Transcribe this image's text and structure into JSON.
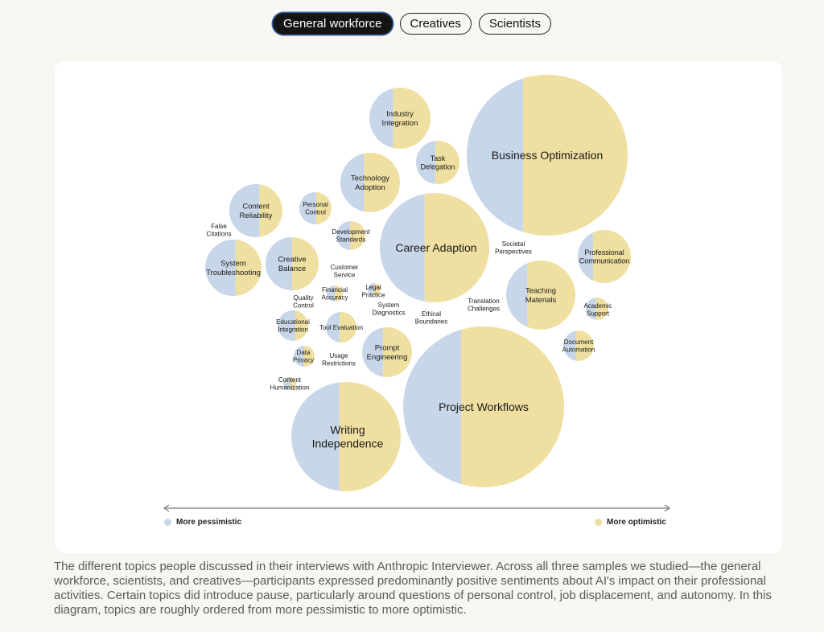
{
  "tabs": [
    {
      "label": "General workforce",
      "active": true
    },
    {
      "label": "Creatives",
      "active": false
    },
    {
      "label": "Scientists",
      "active": false
    }
  ],
  "colors": {
    "pessimistic": "#c7d6e8",
    "optimistic": "#efdfa0"
  },
  "topics": [
    {
      "label": "Industry\nIntegration",
      "pessimistic_share": 0.39
    },
    {
      "label": "Business Optimization",
      "pessimistic_share": 0.35
    },
    {
      "label": "Task\nDelegation",
      "pessimistic_share": 0.45
    },
    {
      "label": "Technology\nAdoption",
      "pessimistic_share": 0.4
    },
    {
      "label": "Content\nReliability",
      "pessimistic_share": 0.57
    },
    {
      "label": "Personal\nControl",
      "pessimistic_share": 0.52
    },
    {
      "label": "Development\nStandards",
      "pessimistic_share": 0.47
    },
    {
      "label": "Career Adaption",
      "pessimistic_share": 0.41
    },
    {
      "label": "Professional\nCommunication",
      "pessimistic_share": 0.29
    },
    {
      "label": "System\nTroubleshooting",
      "pessimistic_share": 0.54
    },
    {
      "label": "Creative\nBalance",
      "pessimistic_share": 0.5
    },
    {
      "label": "Teaching\nMaterials",
      "pessimistic_share": 0.31
    },
    {
      "label": "Academic\nSupport",
      "pessimistic_share": 0.45
    },
    {
      "label": "Tool Evaluation",
      "pessimistic_share": 0.45
    },
    {
      "label": "Educational\nIntegration",
      "pessimistic_share": 0.58
    },
    {
      "label": "Financial\nAccuracy",
      "pessimistic_share": 0.5
    },
    {
      "label": "Legal\nPractice",
      "pessimistic_share": 0.5
    },
    {
      "label": "Data\nPrivacy",
      "pessimistic_share": 0.5
    },
    {
      "label": "Prompt\nEngineering",
      "pessimistic_share": 0.42
    },
    {
      "label": "Document\nAutomation",
      "pessimistic_share": 0.42
    },
    {
      "label": "Project Workflows",
      "pessimistic_share": 0.36
    },
    {
      "label": "Writing\nIndependence",
      "pessimistic_share": 0.44
    },
    {
      "label": "Content\nHumanization",
      "pessimistic_share": 0.5
    },
    {
      "label": "False\nCitations",
      "pessimistic_share": 0.6
    },
    {
      "label": "Customer\nService",
      "pessimistic_share": 0.5
    },
    {
      "label": "Quality\nControl",
      "pessimistic_share": 0.5
    },
    {
      "label": "System\nDiagnostics",
      "pessimistic_share": 0.5
    },
    {
      "label": "Usage\nRestrictions",
      "pessimistic_share": 0.5
    },
    {
      "label": "Ethical\nBoundaries",
      "pessimistic_share": 0.5
    },
    {
      "label": "Translation\nChallenges",
      "pessimistic_share": 0.4
    },
    {
      "label": "Societal\nPerspectives",
      "pessimistic_share": 0.4
    }
  ],
  "legend": {
    "left": "More pessimistic",
    "right": "More optimistic"
  },
  "caption": "The different topics people discussed in their interviews with Anthropic Interviewer. Across all three samples we studied—the general workforce, scientists, and creatives—participants expressed predominantly positive sentiments about AI's impact on their professional activities. Certain topics did introduce pause, particularly around questions of personal control, job displacement, and autonomy. In this diagram, topics are roughly ordered from more pessimistic to more optimistic."
}
